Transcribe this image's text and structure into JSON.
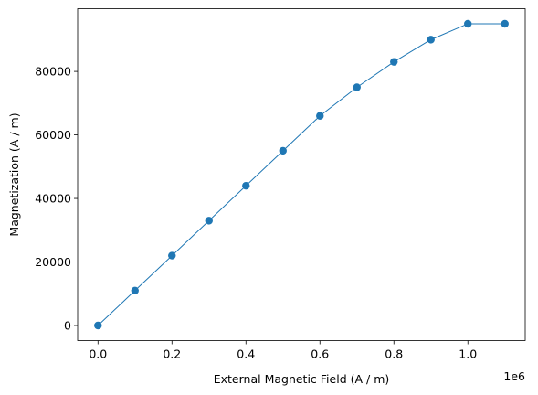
{
  "chart_data": {
    "type": "line",
    "xlabel": "External Magnetic Field (A / m)",
    "ylabel": "Magnetization (A / m)",
    "x_offset_label": "1e6",
    "x": [
      0.0,
      0.1,
      0.2,
      0.3,
      0.4,
      0.5,
      0.6,
      0.7,
      0.8,
      0.9,
      1.0,
      1.1
    ],
    "series": [
      {
        "values": [
          0,
          11000,
          22000,
          33000,
          44000,
          55000,
          66000,
          75000,
          83000,
          90000,
          95000,
          95000
        ],
        "color": "#1f77b4",
        "marker": "circle"
      }
    ],
    "xticks": [
      "0.0",
      "0.2",
      "0.4",
      "0.6",
      "0.8",
      "1.0"
    ],
    "xtick_values": [
      0.0,
      0.2,
      0.4,
      0.6,
      0.8,
      1.0
    ],
    "yticks": [
      "0",
      "20000",
      "40000",
      "60000",
      "80000"
    ],
    "ytick_values": [
      0,
      20000,
      40000,
      60000,
      80000
    ],
    "xlim": [
      -0.055,
      1.155
    ],
    "ylim": [
      -4750,
      99750
    ],
    "grid": false,
    "legend": "none"
  }
}
